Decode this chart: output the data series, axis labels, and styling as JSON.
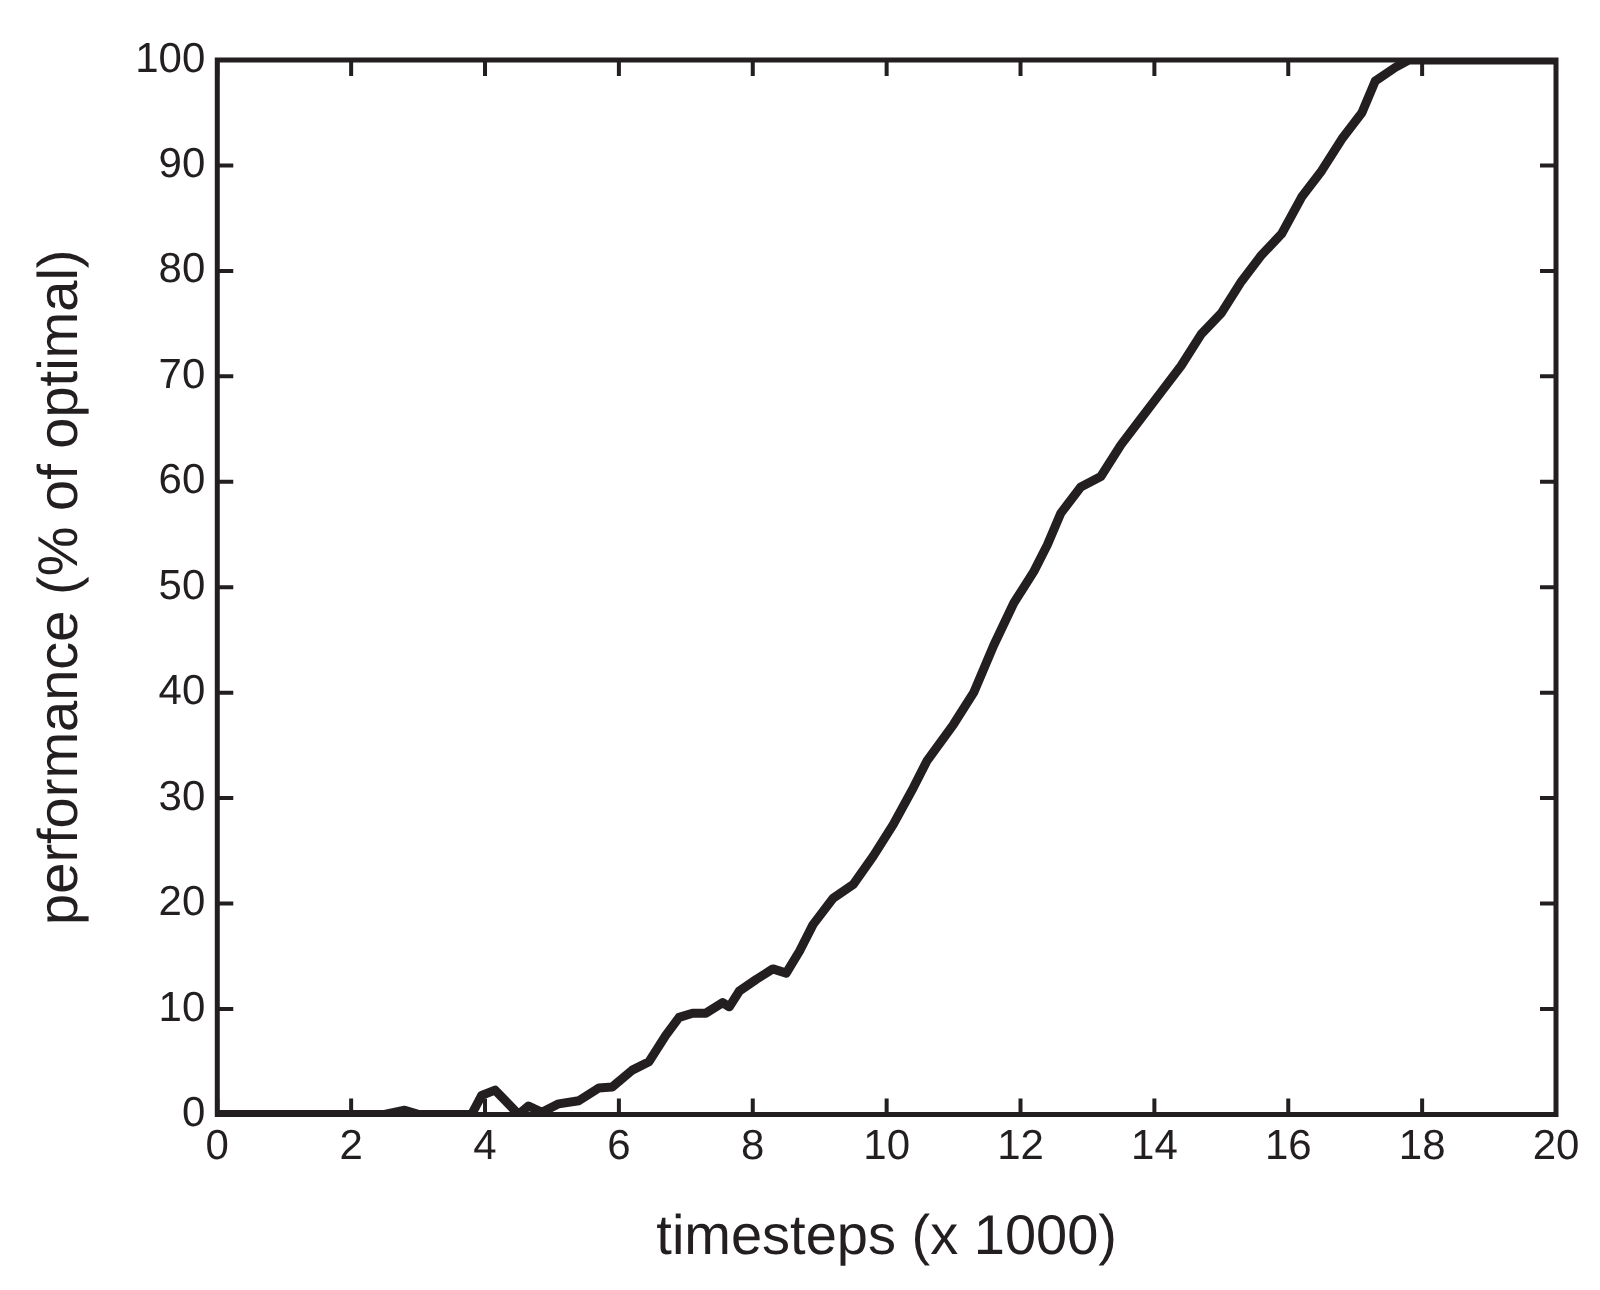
{
  "chart_data": {
    "type": "line",
    "xlabel": "timesteps (x 1000)",
    "ylabel": "performance (% of optimal)",
    "x": [
      0,
      2.5,
      2.8,
      3.0,
      3.8,
      3.95,
      4.15,
      4.35,
      4.5,
      4.65,
      4.85,
      5.1,
      5.4,
      5.7,
      5.9,
      6.2,
      6.45,
      6.7,
      6.9,
      7.1,
      7.3,
      7.55,
      7.65,
      7.8,
      8.05,
      8.3,
      8.5,
      8.7,
      8.9,
      9.2,
      9.5,
      9.8,
      10.1,
      10.4,
      10.6,
      11,
      11.3,
      11.6,
      11.9,
      12.2,
      12.4,
      12.6,
      12.9,
      13.2,
      13.5,
      13.8,
      14.1,
      14.4,
      14.7,
      15.0,
      15.3,
      15.6,
      15.9,
      16.2,
      16.5,
      16.8,
      17.1,
      17.3,
      17.6,
      17.8,
      20
    ],
    "series": [
      {
        "color": "#231f20",
        "values": [
          0,
          0,
          0.4,
          0,
          0,
          1.8,
          2.3,
          1,
          0,
          0.8,
          0.2,
          1,
          1.3,
          2.5,
          2.6,
          4.2,
          5,
          7.5,
          9.2,
          9.6,
          9.6,
          10.6,
          10.2,
          11.7,
          12.8,
          13.8,
          13.4,
          15.5,
          18,
          20.5,
          21.8,
          24.5,
          27.5,
          31,
          33.5,
          37,
          40,
          44.5,
          48.5,
          51.5,
          54,
          57,
          59.5,
          60.5,
          63.5,
          66,
          68.5,
          71,
          74,
          76,
          79,
          81.5,
          83.5,
          87,
          89.5,
          92.5,
          95,
          98,
          99.3,
          100,
          100
        ]
      }
    ],
    "xlim": [
      0,
      20
    ],
    "xticks": [
      0,
      2,
      4,
      6,
      8,
      10,
      12,
      14,
      16,
      18,
      20
    ],
    "ylim": [
      0,
      100
    ],
    "yticks": [
      0,
      10,
      20,
      30,
      40,
      50,
      60,
      70,
      80,
      90,
      100
    ],
    "grid": false,
    "legend": false,
    "marker": "none",
    "line_style": "solid"
  }
}
